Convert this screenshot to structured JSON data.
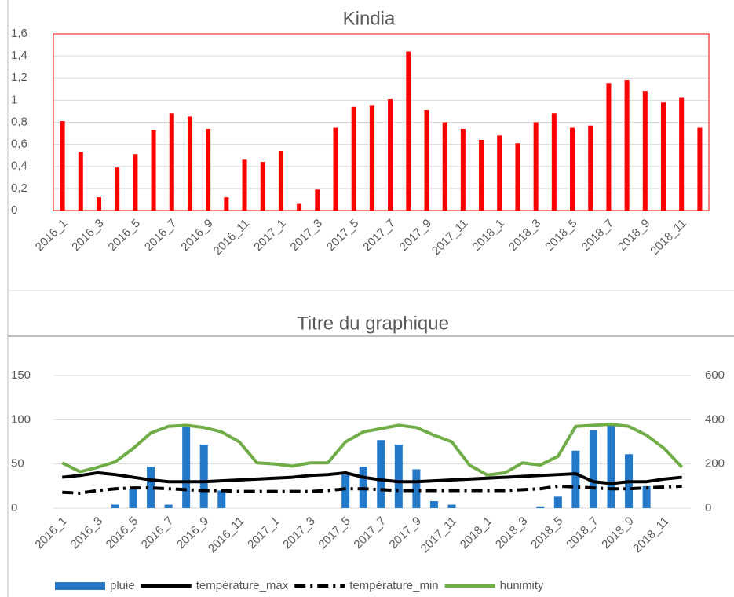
{
  "chart_data": [
    {
      "type": "bar",
      "title": "Kindia",
      "categories": [
        "2016_1",
        null,
        "2016_3",
        null,
        "2016_5",
        null,
        "2016_7",
        null,
        "2016_9",
        null,
        "2016_11",
        null,
        "2017_1",
        null,
        "2017_3",
        null,
        "2017_5",
        null,
        "2017_7",
        null,
        "2017_9",
        null,
        "2017_11",
        null,
        "2018_1",
        null,
        "2018_3",
        null,
        "2018_5",
        null,
        "2018_7",
        null,
        "2018_9",
        null,
        "2018_11",
        null
      ],
      "values": [
        0.81,
        0.53,
        0.12,
        0.39,
        0.51,
        0.73,
        0.88,
        0.85,
        0.74,
        0.12,
        0.46,
        0.44,
        0.54,
        0.06,
        0.19,
        0.75,
        0.94,
        0.95,
        1.01,
        1.44,
        0.91,
        0.8,
        0.74,
        0.64,
        0.68,
        0.61,
        0.8,
        0.88,
        0.75,
        0.77,
        1.15,
        1.18,
        1.08,
        0.98,
        1.02,
        0.75
      ],
      "color": "#ff0000",
      "plot_border": "#ff0000",
      "grid": true,
      "ylim": [
        0,
        1.6
      ],
      "yticks": [
        0,
        {
          "value": 0.2,
          "label": "0,2"
        },
        {
          "value": 0.4,
          "label": "0,4"
        },
        {
          "value": 0.6,
          "label": "0,6"
        },
        {
          "value": 0.8,
          "label": "0,8"
        },
        1,
        {
          "value": 1.2,
          "label": "1,2"
        },
        {
          "value": 1.4,
          "label": "1,4"
        },
        {
          "value": 1.6,
          "label": "1,6"
        }
      ]
    },
    {
      "type": "combo",
      "title": "Titre du graphique",
      "categories": [
        "2016_1",
        null,
        "2016_3",
        null,
        "2016_5",
        null,
        "2016_7",
        null,
        "2016_9",
        null,
        "2016_11",
        null,
        "2017_1",
        null,
        "2017_3",
        null,
        "2017_5",
        null,
        "2017_7",
        null,
        "2017_9",
        null,
        "2017_11",
        null,
        "2018_1",
        null,
        "2018_3",
        null,
        "2018_5",
        null,
        "2018_7",
        null,
        "2018_9",
        null,
        "2018_11",
        null
      ],
      "series": [
        {
          "name": "pluie",
          "type": "bar",
          "color": "#2478c8",
          "values": [
            0,
            0,
            0,
            4,
            22,
            47,
            4,
            93,
            72,
            20,
            0,
            0,
            0,
            0,
            0,
            0,
            38,
            47,
            77,
            72,
            44,
            8,
            4,
            0,
            0,
            0,
            0,
            2,
            13,
            65,
            88,
            95,
            61,
            25,
            0,
            0
          ]
        },
        {
          "name": "température_max",
          "type": "line",
          "style": "solid",
          "color": "#000000",
          "values": [
            35,
            37,
            40,
            38,
            35,
            32,
            30,
            30,
            30,
            31,
            32,
            33,
            34,
            35,
            37,
            38,
            40,
            35,
            32,
            30,
            30,
            31,
            32,
            33,
            34,
            35,
            36,
            37,
            38,
            39,
            30,
            28,
            30,
            30,
            33,
            35
          ]
        },
        {
          "name": "température_min",
          "type": "line",
          "style": "dash-dot",
          "color": "#000000",
          "values": [
            18,
            17,
            20,
            22,
            23,
            23,
            22,
            21,
            20,
            20,
            19,
            19,
            19,
            19,
            19,
            20,
            22,
            22,
            21,
            20,
            20,
            20,
            20,
            20,
            20,
            20,
            21,
            22,
            25,
            24,
            23,
            22,
            22,
            23,
            24,
            25
          ]
        },
        {
          "name": "hunimity",
          "type": "line",
          "style": "solid",
          "color": "#70ad47",
          "axis": "y2",
          "values": [
            205,
            165,
            185,
            210,
            270,
            340,
            370,
            375,
            365,
            345,
            300,
            205,
            200,
            190,
            205,
            205,
            300,
            345,
            360,
            375,
            365,
            330,
            300,
            195,
            150,
            160,
            205,
            195,
            235,
            370,
            375,
            380,
            370,
            330,
            270,
            185
          ]
        }
      ],
      "grid": true,
      "legend": "bottom",
      "ylim": [
        0,
        150
      ],
      "yticks": [
        0,
        50,
        100,
        150
      ],
      "y2lim": [
        0,
        600
      ],
      "y2ticks": [
        0,
        200,
        400,
        600
      ]
    }
  ]
}
